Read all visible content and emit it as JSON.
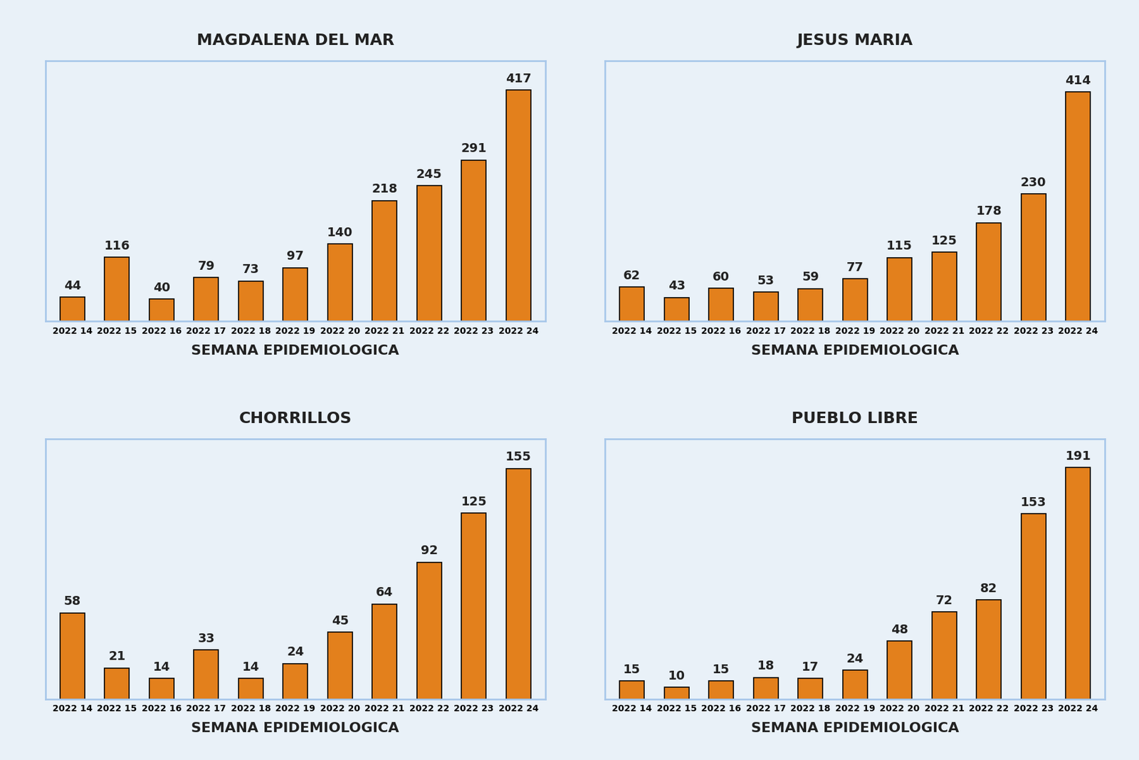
{
  "chart_data": [
    {
      "type": "bar",
      "title": "MAGDALENA DEL MAR",
      "x_label": "SEMANA EPIDEMIOLOGICA",
      "categories": [
        "2022 14",
        "2022 15",
        "2022 16",
        "2022 17",
        "2022 18",
        "2022 19",
        "2022 20",
        "2022 21",
        "2022 22",
        "2022 23",
        "2022 24"
      ],
      "values": [
        44,
        116,
        40,
        79,
        73,
        97,
        140,
        218,
        245,
        291,
        417
      ],
      "color": "#e3801c",
      "ylim": [
        0,
        470
      ],
      "data_labels": true,
      "tick_labels": "x",
      "grid": false
    },
    {
      "type": "bar",
      "title": "JESUS MARIA",
      "x_label": "SEMANA EPIDEMIOLOGICA",
      "categories": [
        "2022 14",
        "2022 15",
        "2022 16",
        "2022 17",
        "2022 18",
        "2022 19",
        "2022 20",
        "2022 21",
        "2022 22",
        "2022 23",
        "2022 24"
      ],
      "values": [
        62,
        43,
        60,
        53,
        59,
        77,
        115,
        125,
        178,
        230,
        414
      ],
      "color": "#e3801c",
      "ylim": [
        0,
        470
      ],
      "data_labels": true,
      "tick_labels": "x",
      "grid": false
    },
    {
      "type": "bar",
      "title": "CHORRILLOS",
      "x_label": "SEMANA EPIDEMIOLOGICA",
      "categories": [
        "2022 14",
        "2022 15",
        "2022 16",
        "2022 17",
        "2022 18",
        "2022 19",
        "2022 20",
        "2022 21",
        "2022 22",
        "2022 23",
        "2022 24"
      ],
      "values": [
        58,
        21,
        14,
        33,
        14,
        24,
        45,
        64,
        92,
        125,
        155
      ],
      "color": "#e3801c",
      "ylim": [
        0,
        175
      ],
      "data_labels": true,
      "tick_labels": "x",
      "grid": false
    },
    {
      "type": "bar",
      "title": "PUEBLO LIBRE",
      "x_label": "SEMANA EPIDEMIOLOGICA",
      "categories": [
        "2022 14",
        "2022 15",
        "2022 16",
        "2022 17",
        "2022 18",
        "2022 19",
        "2022 20",
        "2022 21",
        "2022 22",
        "2022 23",
        "2022 24"
      ],
      "values": [
        15,
        10,
        15,
        18,
        17,
        24,
        48,
        72,
        82,
        153,
        191
      ],
      "color": "#e3801c",
      "ylim": [
        0,
        215
      ],
      "data_labels": true,
      "tick_labels": "x",
      "grid": false
    }
  ]
}
